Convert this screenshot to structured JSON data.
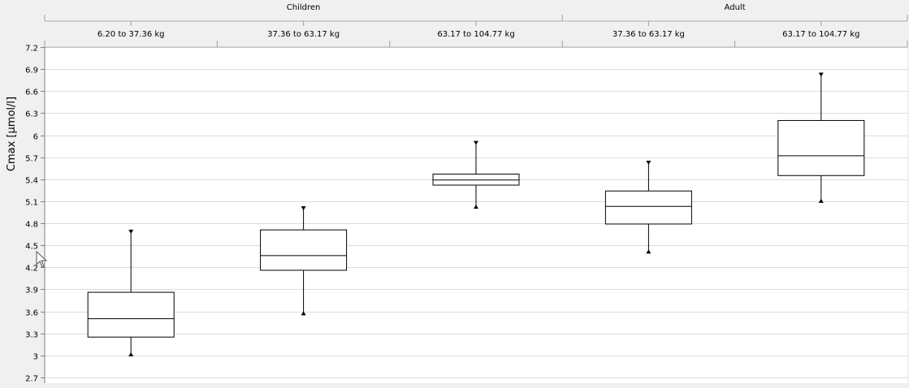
{
  "chart_data": {
    "type": "boxplot",
    "ylabel": "Cmax [µmol/l]",
    "ylim": [
      2.7,
      7.2
    ],
    "yticks": [
      2.7,
      3,
      3.3,
      3.6,
      3.9,
      4.2,
      4.5,
      4.8,
      5.1,
      5.4,
      5.7,
      6,
      6.3,
      6.6,
      6.9,
      7.2
    ],
    "ytick_labels": [
      "2.7",
      "3",
      "3.3",
      "3.6",
      "3.9",
      "4.2",
      "4.5",
      "4.8",
      "5.1",
      "5.4",
      "5.7",
      "6",
      "6.3",
      "6.6",
      "6.9",
      "7.2"
    ],
    "grid": true,
    "groups": [
      {
        "name": "Children",
        "categories": [
          "6.20 to 37.36 kg",
          "37.36 to 63.17 kg",
          "63.17 to 104.77 kg"
        ]
      },
      {
        "name": "Adult",
        "categories": [
          "37.36 to 63.17 kg",
          "63.17 to 104.77 kg"
        ]
      }
    ],
    "boxes": [
      {
        "category": "6.20 to 37.36 kg",
        "group": "Children",
        "whisker_low": 3.01,
        "q1": 3.25,
        "median": 3.5,
        "q3": 3.86,
        "whisker_high": 4.69
      },
      {
        "category": "37.36 to 63.17 kg",
        "group": "Children",
        "whisker_low": 3.57,
        "q1": 4.16,
        "median": 4.36,
        "q3": 4.71,
        "whisker_high": 5.01
      },
      {
        "category": "63.17 to 104.77 kg",
        "group": "Children",
        "whisker_low": 5.02,
        "q1": 5.32,
        "median": 5.39,
        "q3": 5.47,
        "whisker_high": 5.9
      },
      {
        "category": "37.36 to 63.17 kg",
        "group": "Adult",
        "whisker_low": 4.41,
        "q1": 4.79,
        "median": 5.03,
        "q3": 5.24,
        "whisker_high": 5.63
      },
      {
        "category": "63.17 to 104.77 kg",
        "group": "Adult",
        "whisker_low": 5.1,
        "q1": 5.45,
        "median": 5.72,
        "q3": 6.2,
        "whisker_high": 6.83
      }
    ]
  }
}
